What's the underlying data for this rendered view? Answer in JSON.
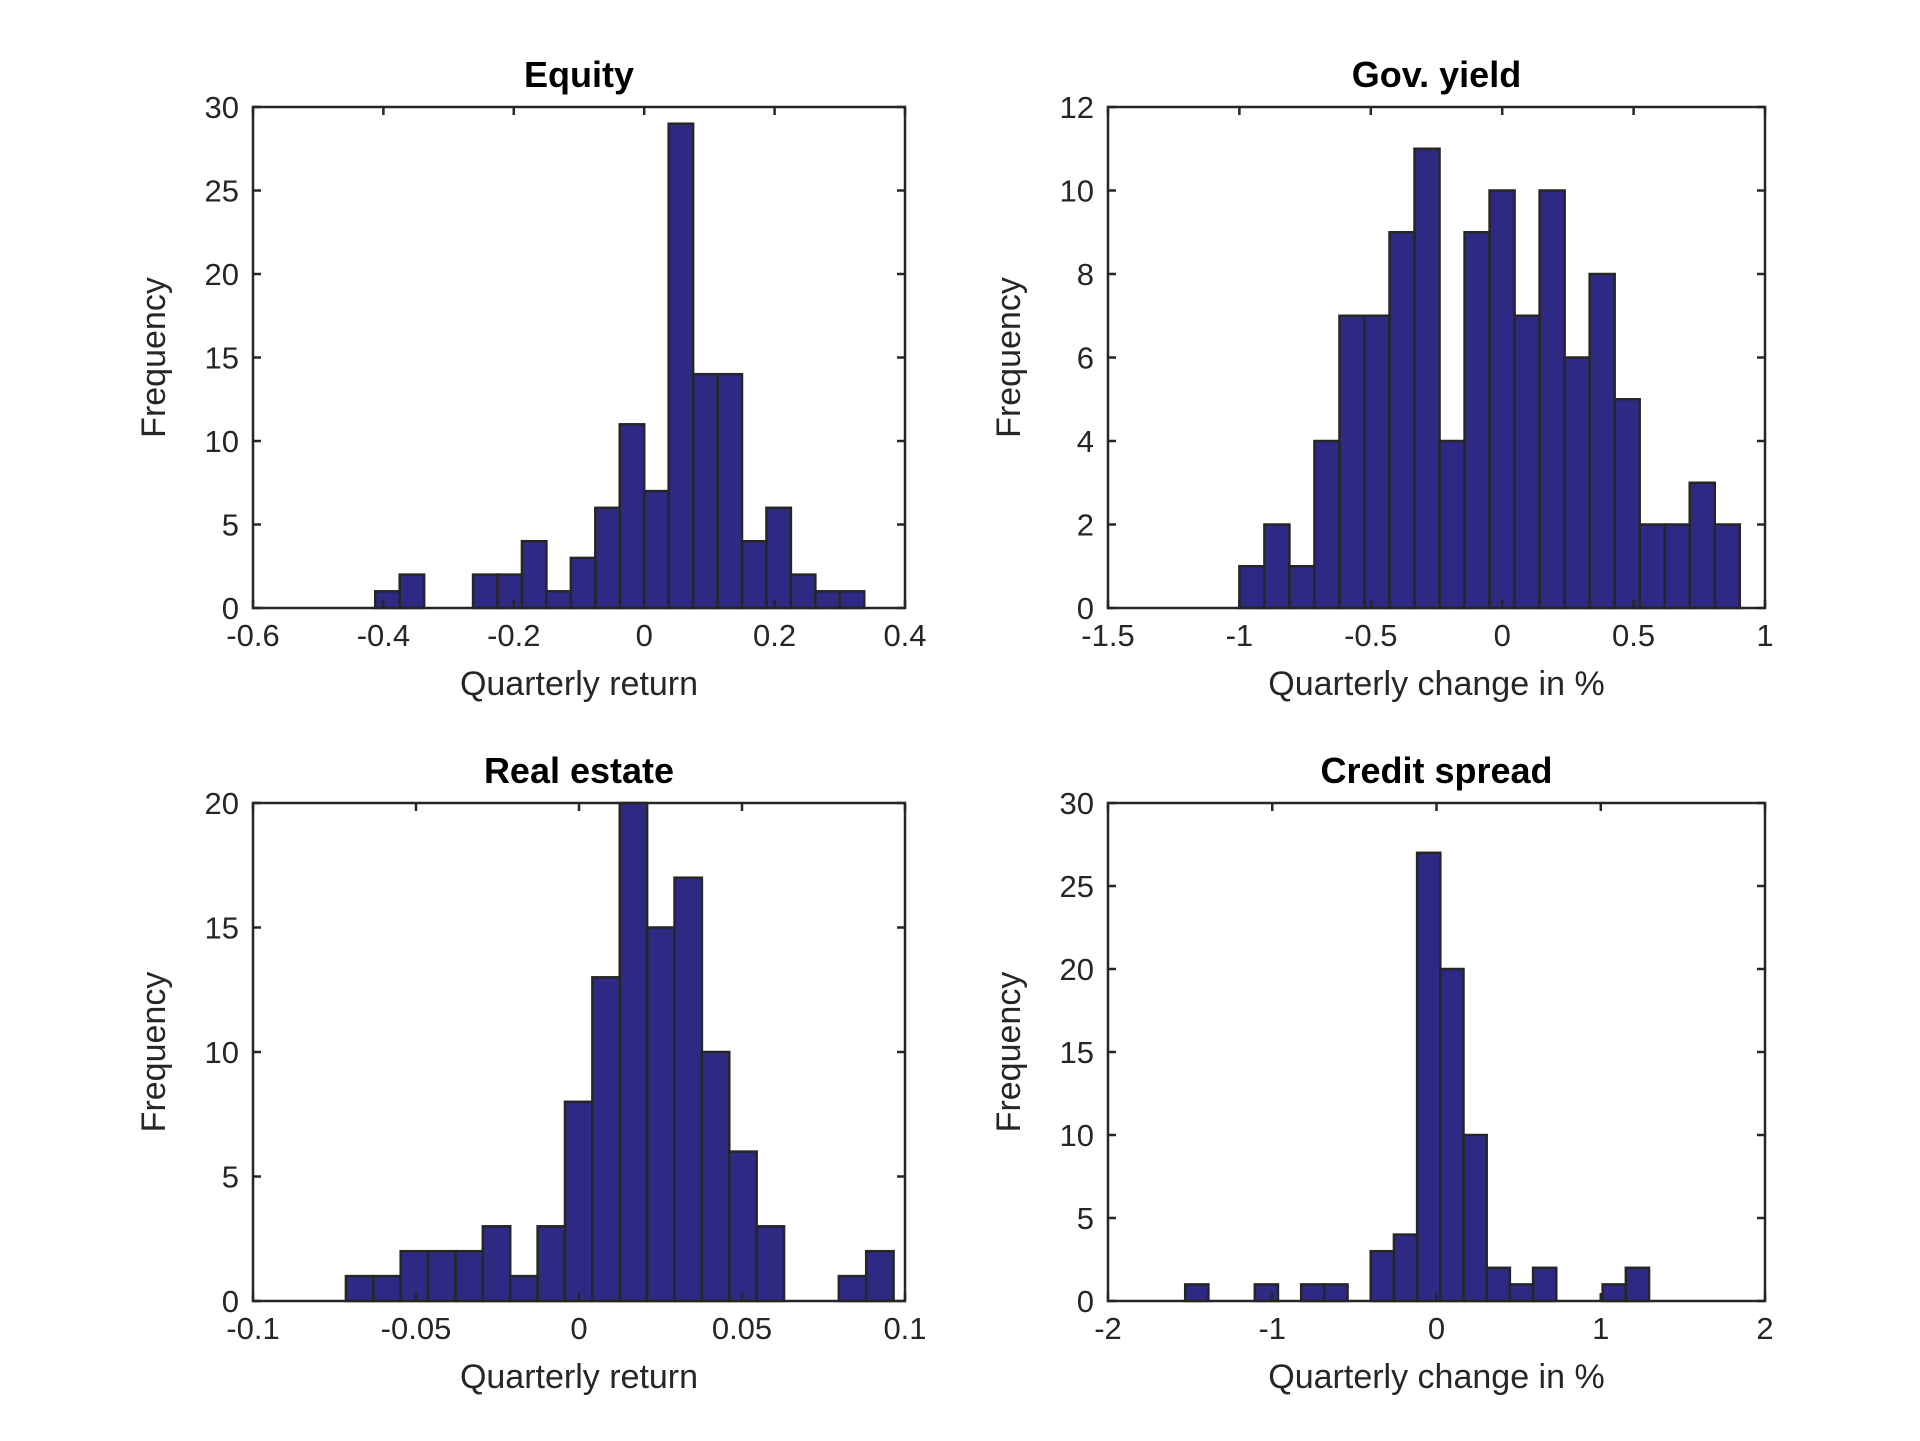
{
  "chart_data": [
    {
      "type": "bar",
      "title": "Equity",
      "xlabel": "Quarterly return",
      "ylabel": "Frequency",
      "xlim": [
        -0.6,
        0.4
      ],
      "ylim": [
        0,
        30
      ],
      "xticks": [
        "-0.6",
        "-0.4",
        "-0.2",
        "0",
        "0.2",
        "0.4"
      ],
      "yticks": [
        "0",
        "5",
        "10",
        "15",
        "20",
        "25",
        "30"
      ],
      "bin_width": 0.0375,
      "bins": [
        {
          "x0": -0.4125,
          "count": 1
        },
        {
          "x0": -0.375,
          "count": 2
        },
        {
          "x0": -0.3375,
          "count": 0
        },
        {
          "x0": -0.3,
          "count": 0
        },
        {
          "x0": -0.2625,
          "count": 2
        },
        {
          "x0": -0.225,
          "count": 2
        },
        {
          "x0": -0.1875,
          "count": 4
        },
        {
          "x0": -0.15,
          "count": 1
        },
        {
          "x0": -0.1125,
          "count": 3
        },
        {
          "x0": -0.075,
          "count": 6
        },
        {
          "x0": -0.0375,
          "count": 11
        },
        {
          "x0": 0.0,
          "count": 7
        },
        {
          "x0": 0.0375,
          "count": 29
        },
        {
          "x0": 0.075,
          "count": 14
        },
        {
          "x0": 0.1125,
          "count": 14
        },
        {
          "x0": 0.15,
          "count": 4
        },
        {
          "x0": 0.1875,
          "count": 6
        },
        {
          "x0": 0.225,
          "count": 2
        },
        {
          "x0": 0.2625,
          "count": 1
        },
        {
          "x0": 0.3,
          "count": 1
        }
      ]
    },
    {
      "type": "bar",
      "title": "Gov. yield",
      "xlabel": "Quarterly change in %",
      "ylabel": "Frequency",
      "xlim": [
        -1.5,
        1
      ],
      "ylim": [
        0,
        12
      ],
      "xticks": [
        "-1.5",
        "-1",
        "-0.5",
        "0",
        "0.5",
        "1"
      ],
      "yticks": [
        "0",
        "2",
        "4",
        "6",
        "8",
        "10",
        "12"
      ],
      "bin_width": 0.0952,
      "bins": [
        {
          "x0": -1.0,
          "count": 1
        },
        {
          "x0": -0.9048,
          "count": 2
        },
        {
          "x0": -0.8096,
          "count": 1
        },
        {
          "x0": -0.7144,
          "count": 4
        },
        {
          "x0": -0.6192,
          "count": 7
        },
        {
          "x0": -0.524,
          "count": 7
        },
        {
          "x0": -0.4288,
          "count": 9
        },
        {
          "x0": -0.3336,
          "count": 11
        },
        {
          "x0": -0.2384,
          "count": 4
        },
        {
          "x0": -0.1432,
          "count": 9
        },
        {
          "x0": -0.048,
          "count": 10
        },
        {
          "x0": 0.0472,
          "count": 7
        },
        {
          "x0": 0.1424,
          "count": 10
        },
        {
          "x0": 0.2376,
          "count": 6
        },
        {
          "x0": 0.3328,
          "count": 8
        },
        {
          "x0": 0.428,
          "count": 5
        },
        {
          "x0": 0.5232,
          "count": 2
        },
        {
          "x0": 0.6184,
          "count": 2
        },
        {
          "x0": 0.7136,
          "count": 3
        },
        {
          "x0": 0.8088,
          "count": 2
        }
      ]
    },
    {
      "type": "bar",
      "title": "Real estate",
      "xlabel": "Quarterly return",
      "ylabel": "Frequency",
      "xlim": [
        -0.1,
        0.1
      ],
      "ylim": [
        0,
        20
      ],
      "xticks": [
        "-0.1",
        "-0.05",
        "0",
        "0.05",
        "0.1"
      ],
      "yticks": [
        "0",
        "5",
        "10",
        "15",
        "20"
      ],
      "bin_width": 0.0084,
      "bins": [
        {
          "x0": -0.0715,
          "count": 1
        },
        {
          "x0": -0.0631,
          "count": 1
        },
        {
          "x0": -0.0547,
          "count": 2
        },
        {
          "x0": -0.0463,
          "count": 2
        },
        {
          "x0": -0.0379,
          "count": 2
        },
        {
          "x0": -0.0295,
          "count": 3
        },
        {
          "x0": -0.0211,
          "count": 1
        },
        {
          "x0": -0.0127,
          "count": 3
        },
        {
          "x0": -0.0043,
          "count": 8
        },
        {
          "x0": 0.0041,
          "count": 13
        },
        {
          "x0": 0.0125,
          "count": 20
        },
        {
          "x0": 0.0209,
          "count": 15
        },
        {
          "x0": 0.0293,
          "count": 17
        },
        {
          "x0": 0.0377,
          "count": 10
        },
        {
          "x0": 0.0461,
          "count": 6
        },
        {
          "x0": 0.0545,
          "count": 3
        },
        {
          "x0": 0.0629,
          "count": 0
        },
        {
          "x0": 0.0713,
          "count": 0
        },
        {
          "x0": 0.0797,
          "count": 1
        },
        {
          "x0": 0.0881,
          "count": 2
        }
      ]
    },
    {
      "type": "bar",
      "title": "Credit spread",
      "xlabel": "Quarterly change in %",
      "ylabel": "Frequency",
      "xlim": [
        -2,
        2
      ],
      "ylim": [
        0,
        30
      ],
      "xticks": [
        "-2",
        "-1",
        "0",
        "1",
        "2"
      ],
      "yticks": [
        "0",
        "5",
        "10",
        "15",
        "20",
        "25",
        "30"
      ],
      "bin_width": 0.1412,
      "bins": [
        {
          "x0": -1.53,
          "count": 1
        },
        {
          "x0": -1.3888,
          "count": 0
        },
        {
          "x0": -1.2476,
          "count": 0
        },
        {
          "x0": -1.1064,
          "count": 1
        },
        {
          "x0": -0.9652,
          "count": 0
        },
        {
          "x0": -0.824,
          "count": 1
        },
        {
          "x0": -0.6828,
          "count": 1
        },
        {
          "x0": -0.5416,
          "count": 0
        },
        {
          "x0": -0.4004,
          "count": 3
        },
        {
          "x0": -0.2592,
          "count": 4
        },
        {
          "x0": -0.118,
          "count": 27
        },
        {
          "x0": 0.0232,
          "count": 20
        },
        {
          "x0": 0.1644,
          "count": 10
        },
        {
          "x0": 0.3056,
          "count": 2
        },
        {
          "x0": 0.4468,
          "count": 1
        },
        {
          "x0": 0.588,
          "count": 2
        },
        {
          "x0": 0.7292,
          "count": 0
        },
        {
          "x0": 0.8704,
          "count": 0
        },
        {
          "x0": 1.0116,
          "count": 1
        },
        {
          "x0": 1.1528,
          "count": 2
        }
      ]
    }
  ],
  "colors": {
    "bar_fill": "#2e2a84",
    "edge": "#262626",
    "background": "#ffffff"
  }
}
